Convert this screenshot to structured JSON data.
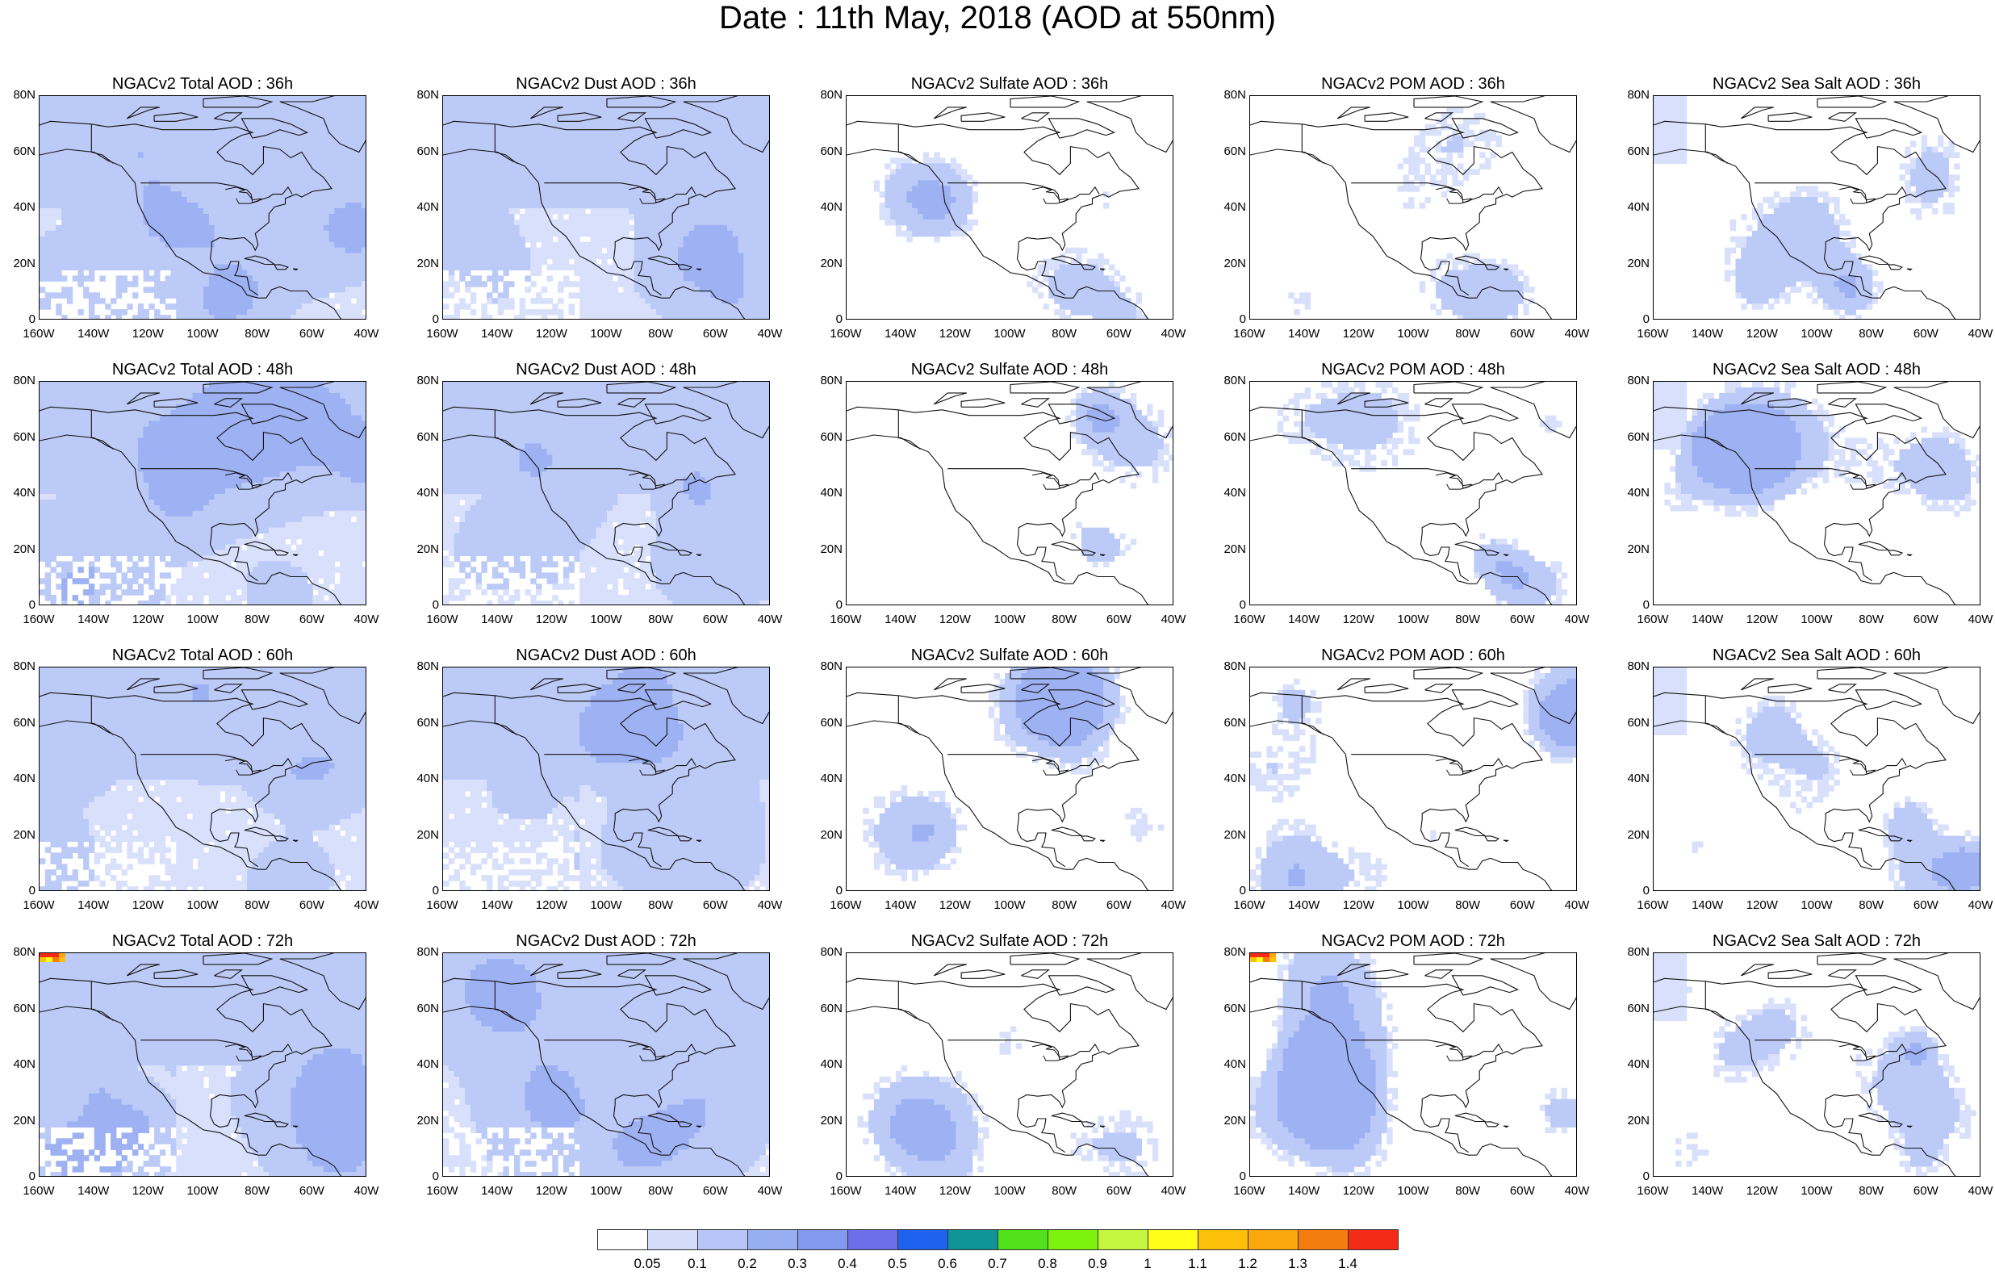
{
  "title": "Date : 11th May, 2018 (AOD at 550nm)",
  "y_tick_labels": [
    "80N",
    "60N",
    "40N",
    "20N",
    "0"
  ],
  "x_tick_labels": [
    "160W",
    "140W",
    "120W",
    "100W",
    "80W",
    "60W",
    "40W"
  ],
  "panels": [
    {
      "title": "NGACv2 Total AOD : 36h",
      "variable": "total",
      "forecast_hour": 36
    },
    {
      "title": "NGACv2 Dust AOD : 36h",
      "variable": "dust",
      "forecast_hour": 36
    },
    {
      "title": "NGACv2 Sulfate AOD : 36h",
      "variable": "sulfate",
      "forecast_hour": 36
    },
    {
      "title": "NGACv2 POM AOD : 36h",
      "variable": "pom",
      "forecast_hour": 36
    },
    {
      "title": "NGACv2 Sea Salt AOD : 36h",
      "variable": "seasalt",
      "forecast_hour": 36
    },
    {
      "title": "NGACv2 Total AOD : 48h",
      "variable": "total",
      "forecast_hour": 48
    },
    {
      "title": "NGACv2 Dust AOD : 48h",
      "variable": "dust",
      "forecast_hour": 48
    },
    {
      "title": "NGACv2 Sulfate AOD : 48h",
      "variable": "sulfate",
      "forecast_hour": 48
    },
    {
      "title": "NGACv2 POM AOD : 48h",
      "variable": "pom",
      "forecast_hour": 48
    },
    {
      "title": "NGACv2 Sea Salt AOD : 48h",
      "variable": "seasalt",
      "forecast_hour": 48
    },
    {
      "title": "NGACv2 Total AOD : 60h",
      "variable": "total",
      "forecast_hour": 60
    },
    {
      "title": "NGACv2 Dust AOD : 60h",
      "variable": "dust",
      "forecast_hour": 60
    },
    {
      "title": "NGACv2 Sulfate AOD : 60h",
      "variable": "sulfate",
      "forecast_hour": 60
    },
    {
      "title": "NGACv2 POM AOD : 60h",
      "variable": "pom",
      "forecast_hour": 60
    },
    {
      "title": "NGACv2 Sea Salt AOD : 60h",
      "variable": "seasalt",
      "forecast_hour": 60
    },
    {
      "title": "NGACv2 Total AOD : 72h",
      "variable": "total",
      "forecast_hour": 72
    },
    {
      "title": "NGACv2 Dust AOD : 72h",
      "variable": "dust",
      "forecast_hour": 72
    },
    {
      "title": "NGACv2 Sulfate AOD : 72h",
      "variable": "sulfate",
      "forecast_hour": 72
    },
    {
      "title": "NGACv2 POM AOD : 72h",
      "variable": "pom",
      "forecast_hour": 72
    },
    {
      "title": "NGACv2 Sea Salt  AOD : 72h",
      "variable": "seasalt",
      "forecast_hour": 72
    }
  ],
  "map_extent": {
    "lon": [
      -160,
      -40
    ],
    "lat": [
      0,
      80
    ]
  },
  "colorbar": {
    "labels": [
      "0.05",
      "0.1",
      "0.2",
      "0.3",
      "0.4",
      "0.5",
      "0.6",
      "0.7",
      "0.8",
      "0.9",
      "1",
      "1.1",
      "1.2",
      "1.3",
      "1.4"
    ],
    "colors": [
      "#ffffff",
      "#d4dcfa",
      "#b7c6f7",
      "#98aef3",
      "#8399f0",
      "#6b6ee6",
      "#1f62f0",
      "#109497",
      "#52e11d",
      "#7ef20f",
      "#c6f540",
      "#ffff1a",
      "#fcc00b",
      "#fba70e",
      "#f57c0e",
      "#f42b17"
    ]
  }
}
